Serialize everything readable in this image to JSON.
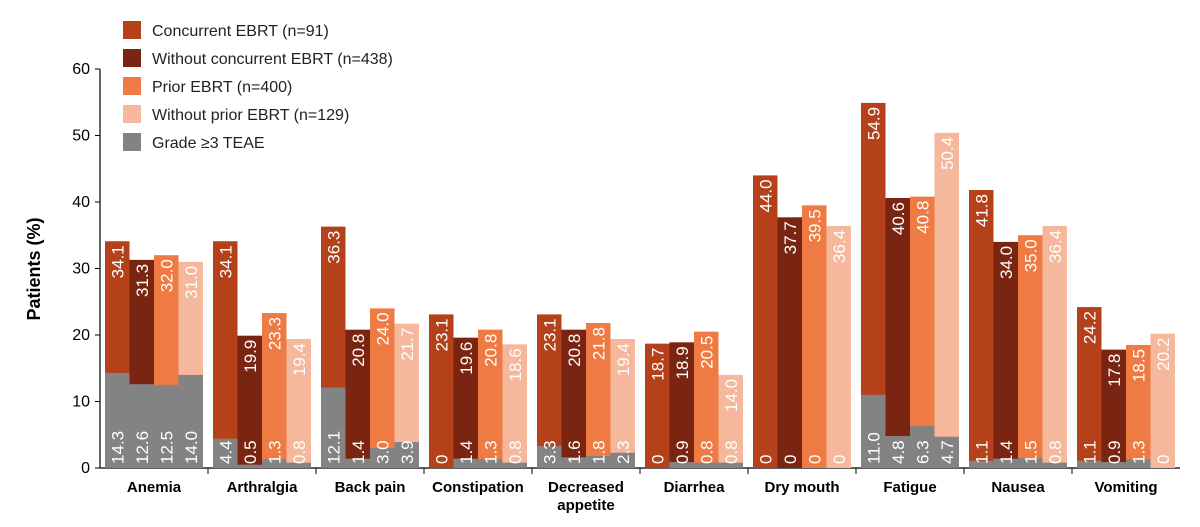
{
  "chart_data": {
    "type": "bar",
    "ylabel": "Patients (%)",
    "ylim": [
      0,
      60
    ],
    "yticks": [
      "0",
      "10",
      "20",
      "30",
      "40",
      "50",
      "60"
    ],
    "categories": [
      "Anemia",
      "Arthralgia",
      "Back pain",
      "Constipation",
      "Decreased appetite",
      "Diarrhea",
      "Dry mouth",
      "Fatigue",
      "Nausea",
      "Vomiting"
    ],
    "category_lines": [
      [
        "Anemia"
      ],
      [
        "Arthralgia"
      ],
      [
        "Back pain"
      ],
      [
        "Constipation"
      ],
      [
        "Decreased",
        "appetite"
      ],
      [
        "Diarrhea"
      ],
      [
        "Dry mouth"
      ],
      [
        "Fatigue"
      ],
      [
        "Nausea"
      ],
      [
        "Vomiting"
      ]
    ],
    "legend_position": "top-left",
    "series": [
      {
        "name": "Concurrent EBRT (n=91)",
        "color": "#b5411b",
        "values": [
          34.1,
          34.1,
          36.3,
          23.1,
          23.1,
          18.7,
          44.0,
          54.9,
          41.8,
          24.2
        ],
        "labels": [
          "34.1",
          "34.1",
          "36.3",
          "23.1",
          "23.1",
          "18.7",
          "44.0",
          "54.9",
          "41.8",
          "24.2"
        ],
        "grade3": [
          14.3,
          4.4,
          12.1,
          0,
          3.3,
          0,
          0,
          11.0,
          1.1,
          1.1
        ],
        "grade3_labels": [
          "14.3",
          "4.4",
          "12.1",
          "0",
          "3.3",
          "0",
          "0",
          "11.0",
          "1.1",
          "1.1"
        ]
      },
      {
        "name": "Without concurrent EBRT (n=438)",
        "color": "#7a2512",
        "values": [
          31.3,
          19.9,
          20.8,
          19.6,
          20.8,
          18.9,
          37.7,
          40.6,
          34.0,
          17.8
        ],
        "labels": [
          "31.3",
          "19.9",
          "20.8",
          "19.6",
          "20.8",
          "18.9",
          "37.7",
          "40.6",
          "34.0",
          "17.8"
        ],
        "grade3": [
          12.6,
          0.5,
          1.4,
          1.4,
          1.6,
          0.9,
          0,
          4.8,
          1.4,
          0.9
        ],
        "grade3_labels": [
          "12.6",
          "0.5",
          "1.4",
          "1.4",
          "1.6",
          "0.9",
          "0",
          "4.8",
          "1.4",
          "0.9"
        ]
      },
      {
        "name": "Prior EBRT (n=400)",
        "color": "#ee7a44",
        "values": [
          32.0,
          23.3,
          24.0,
          20.8,
          21.8,
          20.5,
          39.5,
          40.8,
          35.0,
          18.5
        ],
        "labels": [
          "32.0",
          "23.3",
          "24.0",
          "20.8",
          "21.8",
          "20.5",
          "39.5",
          "40.8",
          "35.0",
          "18.5"
        ],
        "grade3": [
          12.5,
          1.3,
          3.0,
          1.3,
          1.8,
          0.8,
          0,
          6.3,
          1.5,
          1.3
        ],
        "grade3_labels": [
          "12.5",
          "1.3",
          "3.0",
          "1.3",
          "1.8",
          "0.8",
          "0",
          "6.3",
          "1.5",
          "1.3"
        ]
      },
      {
        "name": "Without prior EBRT (n=129)",
        "color": "#f6b89c",
        "values": [
          31.0,
          19.4,
          21.7,
          18.6,
          19.4,
          14.0,
          36.4,
          50.4,
          36.4,
          20.2
        ],
        "labels": [
          "31.0",
          "19.4",
          "21.7",
          "18.6",
          "19.4",
          "14.0",
          "36.4",
          "50.4",
          "36.4",
          "20.2"
        ],
        "grade3": [
          14.0,
          0.8,
          3.9,
          0.8,
          2.3,
          0.8,
          0,
          4.7,
          0.8,
          0
        ],
        "grade3_labels": [
          "14.0",
          "0.8",
          "3.9",
          "0.8",
          "2.3",
          "0.8",
          "0",
          "4.7",
          "0.8",
          "0"
        ]
      }
    ],
    "overlay": {
      "name": "Grade ≥3 TEAE",
      "color": "#838383"
    }
  }
}
